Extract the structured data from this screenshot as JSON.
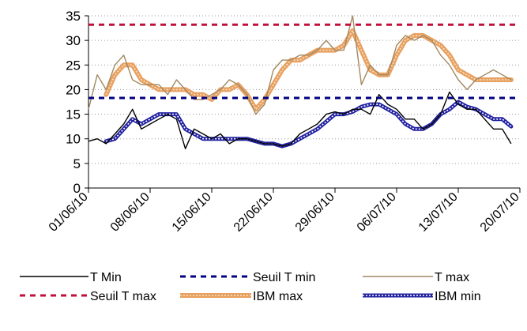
{
  "chart_data": {
    "type": "line",
    "title": "",
    "xlabel": "",
    "ylabel": "",
    "ylim": [
      0,
      35
    ],
    "yticks": [
      0,
      5,
      10,
      15,
      20,
      25,
      30,
      35
    ],
    "xlim": [
      "01/06/10",
      "20/07/10"
    ],
    "xtick_labels": [
      "01/06/10",
      "08/06/10",
      "15/06/10",
      "22/06/10",
      "29/06/10",
      "06/07/10",
      "13/07/10",
      "20/07/10"
    ],
    "grid": "horizontal",
    "legend_position": "bottom",
    "x": [
      "01/06/10",
      "02/06/10",
      "03/06/10",
      "04/06/10",
      "05/06/10",
      "06/06/10",
      "07/06/10",
      "08/06/10",
      "09/06/10",
      "10/06/10",
      "11/06/10",
      "12/06/10",
      "13/06/10",
      "14/06/10",
      "15/06/10",
      "16/06/10",
      "17/06/10",
      "18/06/10",
      "19/06/10",
      "20/06/10",
      "21/06/10",
      "22/06/10",
      "23/06/10",
      "24/06/10",
      "25/06/10",
      "26/06/10",
      "27/06/10",
      "28/06/10",
      "29/06/10",
      "30/06/10",
      "01/07/10",
      "02/07/10",
      "03/07/10",
      "04/07/10",
      "05/07/10",
      "06/07/10",
      "07/07/10",
      "08/07/10",
      "09/07/10",
      "10/07/10",
      "11/07/10",
      "12/07/10",
      "13/07/10",
      "14/07/10",
      "15/07/10",
      "16/07/10",
      "17/07/10",
      "18/07/10",
      "19/07/10"
    ],
    "series": [
      {
        "name": "T Min",
        "color": "#000000",
        "style": "thin",
        "values": [
          9.5,
          10,
          9,
          11,
          13,
          16,
          12,
          13,
          14,
          15,
          14,
          8,
          12,
          11,
          10,
          11,
          9,
          10,
          10,
          9.5,
          9,
          9,
          8.5,
          9,
          11,
          12,
          13,
          15,
          15.5,
          15,
          16,
          16,
          15,
          19,
          17,
          16,
          14,
          14,
          12,
          13,
          15,
          19.5,
          17,
          16,
          16,
          14,
          12,
          12,
          9
        ]
      },
      {
        "name": "Seuil T min",
        "color": "#000080",
        "style": "dashed",
        "constant": 18.3
      },
      {
        "name": "T max",
        "color": "#a08860",
        "style": "thin",
        "values": [
          16,
          23,
          20,
          25,
          27,
          22,
          21,
          21,
          21,
          19,
          22,
          20,
          18,
          18,
          19,
          20,
          22,
          21,
          19,
          15,
          17,
          24,
          26,
          26,
          27,
          27,
          28,
          30,
          28,
          28,
          35,
          21,
          25,
          23,
          23,
          29,
          31,
          30,
          31,
          30,
          27,
          25,
          22,
          20,
          22,
          23,
          24,
          23,
          22
        ]
      },
      {
        "name": "Seuil T max",
        "color": "#c0103a",
        "style": "dashed",
        "constant": 33.2
      },
      {
        "name": "IBM max",
        "color": "#e8a060",
        "style": "thick",
        "values": [
          null,
          null,
          19,
          23,
          25,
          25,
          22,
          21,
          20,
          20,
          20,
          20,
          19,
          19,
          18,
          20,
          20,
          21,
          19,
          16,
          18,
          21,
          24,
          26,
          26,
          27,
          28,
          28,
          28,
          29,
          32,
          28,
          24,
          23,
          23,
          27,
          30,
          31,
          31,
          30,
          29,
          27,
          24,
          23,
          22,
          22,
          22,
          22,
          22
        ]
      },
      {
        "name": "IBM min",
        "color": "#2020a0",
        "style": "beaded",
        "values": [
          null,
          null,
          9.5,
          10,
          12,
          14,
          13,
          14,
          15,
          15,
          15,
          12,
          11,
          10,
          10,
          10,
          10,
          10,
          10,
          9.5,
          9,
          9,
          8.5,
          9,
          10,
          11,
          12,
          13.5,
          15,
          15,
          15.5,
          16.5,
          17,
          17,
          16,
          15,
          13,
          12,
          12,
          13,
          15,
          16,
          17.5,
          16.5,
          16,
          15,
          14,
          14,
          12.5
        ]
      }
    ]
  }
}
